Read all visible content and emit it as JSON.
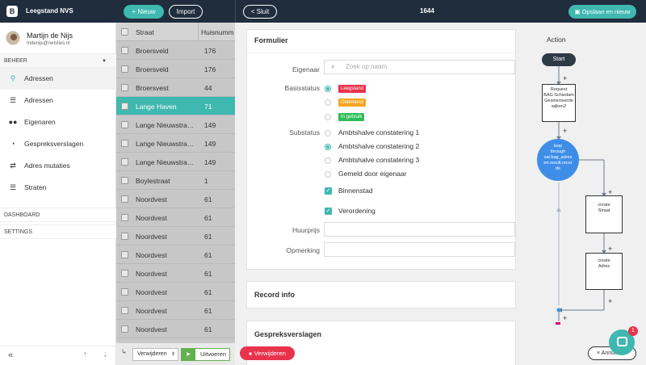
{
  "header": {
    "logo": "B",
    "app_title": "Leegstand NVS",
    "new_label": "+ Nieuw",
    "import_label": "Import",
    "close_label": "< Sluit",
    "record_id": "1644",
    "save_label": "Opslaan en nieuw"
  },
  "user": {
    "name": "Martijn de Nijs",
    "email": "mdenijs@netvlies.nl"
  },
  "sidebar": {
    "section_beheer": "BEHEER",
    "items": [
      {
        "label": "Adressen",
        "icon": "map-pin-icon",
        "active": true
      },
      {
        "label": "Adressen",
        "icon": "list-icon",
        "active": false
      },
      {
        "label": "Eigenaren",
        "icon": "users-icon",
        "active": false
      },
      {
        "label": "Gespreksverslagen",
        "icon": "chat-icon",
        "active": false
      },
      {
        "label": "Adres mutaties",
        "icon": "swap-icon",
        "active": false
      },
      {
        "label": "Straten",
        "icon": "list-icon",
        "active": false
      }
    ],
    "section_dashboard": "DASHBOARD",
    "section_settings": "SETTINGS"
  },
  "list": {
    "col_straat": "Straat",
    "col_nummer": "Huisnumm",
    "rows": [
      {
        "straat": "Broersveld",
        "nummer": "176"
      },
      {
        "straat": "Broersveld",
        "nummer": "176"
      },
      {
        "straat": "Broersvest",
        "nummer": "44"
      },
      {
        "straat": "Lange Haven",
        "nummer": "71"
      },
      {
        "straat": "Lange Nieuwstra…",
        "nummer": "149"
      },
      {
        "straat": "Lange Nieuwstra…",
        "nummer": "149"
      },
      {
        "straat": "Lange Nieuwstra…",
        "nummer": "149"
      },
      {
        "straat": "Boylestraat",
        "nummer": "1"
      },
      {
        "straat": "Noordvest",
        "nummer": "61"
      },
      {
        "straat": "Noordvest",
        "nummer": "61"
      },
      {
        "straat": "Noordvest",
        "nummer": "61"
      },
      {
        "straat": "Noordvest",
        "nummer": "61"
      },
      {
        "straat": "Noordvest",
        "nummer": "61"
      },
      {
        "straat": "Noordvest",
        "nummer": "61"
      },
      {
        "straat": "Noordvest",
        "nummer": "61"
      },
      {
        "straat": "Noordvest",
        "nummer": "61"
      },
      {
        "straat": "Noordvest",
        "nummer": "61"
      }
    ],
    "selected_index": 3,
    "action_select": "Verwijderen",
    "execute_label": "Uitvoeren"
  },
  "form": {
    "title": "Formulier",
    "owner_label": "Eigenaar",
    "owner_placeholder": "Zoek op naam",
    "basisstatus_label": "Basisstatus",
    "basisstatus": [
      {
        "label": "Leegstand",
        "color": "#e8334d",
        "checked": true
      },
      {
        "label": "Onbekend",
        "color": "#f5a623",
        "checked": false
      },
      {
        "label": "In gebruik",
        "color": "#2ebd59",
        "checked": false
      }
    ],
    "substatus_label": "Substatus",
    "substatus": [
      {
        "label": "Ambtshalve constatering 1",
        "checked": false
      },
      {
        "label": "Ambtshalve constatering 2",
        "checked": true
      },
      {
        "label": "Ambtshalve constatering 3",
        "checked": false
      },
      {
        "label": "Gemeld door eigenaar",
        "checked": false
      }
    ],
    "binnenstad_label": "Binnenstad",
    "verordening_label": "Verordening",
    "huurprijs_label": "Huurprijs",
    "opmerking_label": "Opmerking"
  },
  "record_info_title": "Record info",
  "gespreksverslagen_title": "Gespreksverslagen",
  "delete_label": "Verwijderen",
  "flow": {
    "title": "Action",
    "start": "Start",
    "request_node": [
      "Request",
      "BAG Schiedam",
      "Geselecteerde",
      "wijken2"
    ],
    "loop_node": [
      "loop",
      "through",
      "var.bag_adres",
      "en.result.recor",
      "ds"
    ],
    "create_straat": [
      "create",
      "Straat"
    ],
    "create_adres": [
      "create",
      "Adres"
    ],
    "plus": "+"
  },
  "cancel_label": "× Annuleren",
  "chat_badge": "1"
}
